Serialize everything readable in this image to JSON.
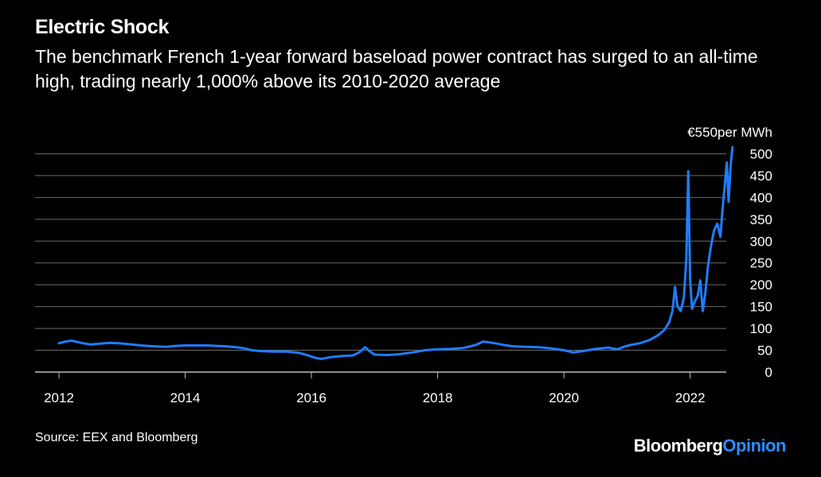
{
  "title": "Electric Shock",
  "subtitle": "The benchmark French 1-year forward baseload power contract has surged to an all-time high, trading nearly 1,000% above its 2010-2020 average",
  "source": "Source: EEX and Bloomberg",
  "brand": {
    "part1": "Bloomberg",
    "part2": "Opinion"
  },
  "colors": {
    "background": "#000000",
    "line": "#1f7cff",
    "grid": "#6a6a6a",
    "brand_accent": "#2f8cff"
  },
  "chart_data": {
    "type": "line",
    "title": "",
    "ylabel": "",
    "unit_label": "€550per MWh",
    "grid": true,
    "ylim": [
      0,
      550
    ],
    "xlim": [
      2012,
      2022.95
    ],
    "y_ticks": [
      "0",
      "50",
      "100",
      "150",
      "200",
      "250",
      "300",
      "350",
      "400",
      "450",
      "500"
    ],
    "y_tick_values": [
      0,
      50,
      100,
      150,
      200,
      250,
      300,
      350,
      400,
      450,
      500
    ],
    "x_ticks": [
      "2012",
      "2014",
      "2016",
      "2018",
      "2020",
      "2022"
    ],
    "x_tick_values": [
      2012,
      2014,
      2016,
      2018,
      2020,
      2022
    ],
    "series": [
      {
        "points": [
          [
            2012.0,
            66
          ],
          [
            2012.1,
            70
          ],
          [
            2012.2,
            72
          ],
          [
            2012.35,
            67
          ],
          [
            2012.5,
            63
          ],
          [
            2012.65,
            65
          ],
          [
            2012.8,
            67
          ],
          [
            2012.95,
            66
          ],
          [
            2013.1,
            64
          ],
          [
            2013.3,
            61
          ],
          [
            2013.5,
            59
          ],
          [
            2013.7,
            58
          ],
          [
            2013.85,
            60
          ],
          [
            2014.0,
            61
          ],
          [
            2014.15,
            61
          ],
          [
            2014.35,
            61
          ],
          [
            2014.5,
            60
          ],
          [
            2014.65,
            59
          ],
          [
            2014.8,
            57
          ],
          [
            2014.95,
            54
          ],
          [
            2015.05,
            50
          ],
          [
            2015.2,
            48
          ],
          [
            2015.4,
            47
          ],
          [
            2015.6,
            47
          ],
          [
            2015.8,
            44
          ],
          [
            2015.95,
            38
          ],
          [
            2016.05,
            33
          ],
          [
            2016.15,
            30
          ],
          [
            2016.3,
            34
          ],
          [
            2016.5,
            37
          ],
          [
            2016.65,
            38
          ],
          [
            2016.75,
            44
          ],
          [
            2016.85,
            57
          ],
          [
            2016.92,
            48
          ],
          [
            2017.0,
            40
          ],
          [
            2017.2,
            39
          ],
          [
            2017.4,
            41
          ],
          [
            2017.6,
            45
          ],
          [
            2017.8,
            50
          ],
          [
            2018.0,
            52
          ],
          [
            2018.2,
            53
          ],
          [
            2018.4,
            55
          ],
          [
            2018.6,
            62
          ],
          [
            2018.72,
            70
          ],
          [
            2018.82,
            68
          ],
          [
            2018.95,
            65
          ],
          [
            2019.05,
            62
          ],
          [
            2019.2,
            59
          ],
          [
            2019.4,
            58
          ],
          [
            2019.6,
            57
          ],
          [
            2019.8,
            54
          ],
          [
            2020.0,
            50
          ],
          [
            2020.15,
            45
          ],
          [
            2020.3,
            48
          ],
          [
            2020.5,
            53
          ],
          [
            2020.7,
            56
          ],
          [
            2020.85,
            52
          ],
          [
            2020.95,
            58
          ],
          [
            2021.05,
            62
          ],
          [
            2021.2,
            66
          ],
          [
            2021.35,
            73
          ],
          [
            2021.5,
            85
          ],
          [
            2021.6,
            98
          ],
          [
            2021.67,
            115
          ],
          [
            2021.72,
            140
          ],
          [
            2021.76,
            195
          ],
          [
            2021.8,
            150
          ],
          [
            2021.85,
            140
          ],
          [
            2021.9,
            170
          ],
          [
            2021.94,
            260
          ],
          [
            2021.97,
            460
          ],
          [
            2022.0,
            210
          ],
          [
            2022.03,
            145
          ],
          [
            2022.07,
            160
          ],
          [
            2022.12,
            175
          ],
          [
            2022.16,
            210
          ],
          [
            2022.2,
            140
          ],
          [
            2022.24,
            180
          ],
          [
            2022.28,
            240
          ],
          [
            2022.33,
            290
          ],
          [
            2022.38,
            325
          ],
          [
            2022.43,
            340
          ],
          [
            2022.48,
            310
          ],
          [
            2022.52,
            385
          ],
          [
            2022.55,
            430
          ],
          [
            2022.58,
            480
          ],
          [
            2022.61,
            390
          ],
          [
            2022.64,
            470
          ],
          [
            2022.67,
            515
          ]
        ]
      }
    ]
  }
}
